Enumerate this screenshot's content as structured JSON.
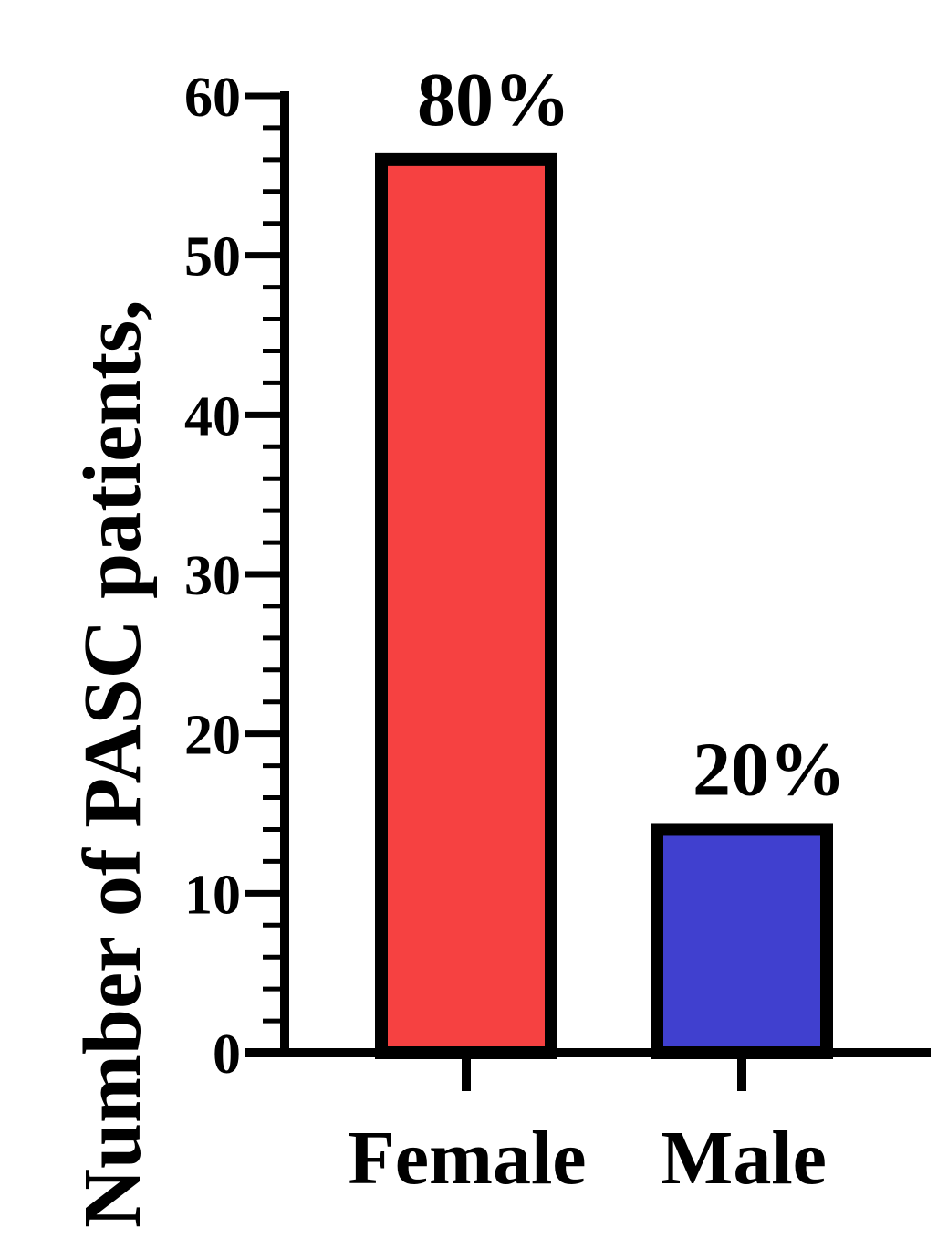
{
  "chart_data": {
    "type": "bar",
    "title": "",
    "xlabel": "",
    "ylabel": "Number of PASC patients,",
    "categories": [
      "Female",
      "Male"
    ],
    "values": [
      56,
      14
    ],
    "data_labels": [
      "80%",
      "20%"
    ],
    "colors": [
      "#F64141",
      "#4040CF"
    ],
    "ylim": [
      0,
      60
    ],
    "yticks": [
      0,
      10,
      20,
      30,
      40,
      50,
      60
    ],
    "grid": false,
    "legend": "none"
  }
}
